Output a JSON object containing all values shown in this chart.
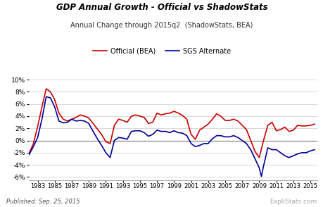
{
  "title": "GDP Annual Growth - Official vs ShadowStats",
  "subtitle": "Annual Change through 2015q2  (ShadowStats, BEA)",
  "ylim": [
    -6.5,
    10.5
  ],
  "xlim": [
    1982.0,
    2015.8
  ],
  "yticks": [
    -6,
    -4,
    -2,
    0,
    2,
    4,
    6,
    8,
    10
  ],
  "xticks": [
    1983,
    1985,
    1987,
    1989,
    1991,
    1993,
    1995,
    1997,
    1999,
    2001,
    2003,
    2005,
    2007,
    2009,
    2011,
    2013,
    2015
  ],
  "official_color": "#cc0000",
  "sgs_color": "#000099",
  "zero_line_color": "#888888",
  "background_color": "#ffffff",
  "grid_color": "#cccccc",
  "published_text": "Published: Sep. 25, 2015",
  "watermark_text": "ExpliStats.com",
  "legend_official": "Official (BEA)",
  "legend_sgs": "SGS Alternate",
  "official_x": [
    1982.0,
    1982.5,
    1983.0,
    1983.5,
    1984.0,
    1984.5,
    1985.0,
    1985.5,
    1986.0,
    1986.5,
    1987.0,
    1987.5,
    1988.0,
    1988.5,
    1989.0,
    1989.5,
    1990.0,
    1990.5,
    1991.0,
    1991.5,
    1992.0,
    1992.5,
    1993.0,
    1993.5,
    1994.0,
    1994.5,
    1995.0,
    1995.5,
    1996.0,
    1996.5,
    1997.0,
    1997.5,
    1998.0,
    1998.5,
    1999.0,
    1999.5,
    2000.0,
    2000.5,
    2001.0,
    2001.5,
    2002.0,
    2002.5,
    2003.0,
    2003.5,
    2004.0,
    2004.5,
    2005.0,
    2005.5,
    2006.0,
    2006.5,
    2007.0,
    2007.5,
    2008.0,
    2008.5,
    2009.0,
    2009.5,
    2010.0,
    2010.5,
    2011.0,
    2011.5,
    2012.0,
    2012.5,
    2013.0,
    2013.5,
    2014.0,
    2014.5,
    2015.0,
    2015.5
  ],
  "official_y": [
    -2.1,
    -0.5,
    2.3,
    5.5,
    8.5,
    8.0,
    6.7,
    4.5,
    3.5,
    3.2,
    3.5,
    3.8,
    4.2,
    4.0,
    3.7,
    2.8,
    1.9,
    1.0,
    -0.2,
    -0.5,
    2.5,
    3.5,
    3.3,
    3.0,
    4.0,
    4.2,
    4.0,
    3.8,
    2.8,
    3.0,
    4.5,
    4.2,
    4.4,
    4.5,
    4.8,
    4.5,
    4.1,
    3.5,
    1.0,
    0.2,
    1.7,
    2.2,
    2.7,
    3.5,
    4.4,
    4.0,
    3.3,
    3.3,
    3.5,
    3.2,
    2.5,
    1.8,
    0.0,
    -1.8,
    -2.8,
    0.0,
    2.5,
    3.0,
    1.6,
    1.8,
    2.2,
    1.5,
    1.7,
    2.5,
    2.4,
    2.4,
    2.5,
    2.7
  ],
  "sgs_x": [
    1982.0,
    1982.5,
    1983.0,
    1983.5,
    1984.0,
    1984.5,
    1985.0,
    1985.5,
    1986.0,
    1986.5,
    1987.0,
    1987.5,
    1988.0,
    1988.5,
    1989.0,
    1989.5,
    1990.0,
    1990.5,
    1991.0,
    1991.5,
    1992.0,
    1992.5,
    1993.0,
    1993.5,
    1994.0,
    1994.5,
    1995.0,
    1995.5,
    1996.0,
    1996.5,
    1997.0,
    1997.5,
    1998.0,
    1998.5,
    1999.0,
    1999.5,
    2000.0,
    2000.5,
    2001.0,
    2001.5,
    2002.0,
    2002.5,
    2003.0,
    2003.5,
    2004.0,
    2004.5,
    2005.0,
    2005.5,
    2006.0,
    2006.5,
    2007.0,
    2007.5,
    2008.0,
    2008.5,
    2009.0,
    2009.25,
    2009.5,
    2010.0,
    2010.5,
    2011.0,
    2011.5,
    2012.0,
    2012.5,
    2013.0,
    2013.5,
    2014.0,
    2014.5,
    2015.0,
    2015.5
  ],
  "sgs_y": [
    -2.3,
    -1.0,
    0.5,
    3.5,
    7.2,
    7.0,
    5.5,
    3.2,
    2.9,
    3.0,
    3.5,
    3.2,
    3.3,
    3.2,
    2.8,
    1.5,
    0.3,
    -0.8,
    -2.0,
    -2.8,
    0.0,
    0.5,
    0.4,
    0.2,
    1.5,
    1.6,
    1.6,
    1.3,
    0.7,
    1.0,
    1.7,
    1.5,
    1.5,
    1.3,
    1.6,
    1.3,
    1.2,
    0.8,
    -0.5,
    -1.0,
    -0.8,
    -0.5,
    -0.5,
    0.3,
    0.8,
    0.8,
    0.6,
    0.6,
    0.8,
    0.5,
    0.0,
    -0.5,
    -1.5,
    -3.0,
    -4.5,
    -5.9,
    -4.2,
    -1.2,
    -1.5,
    -1.5,
    -2.0,
    -2.5,
    -2.8,
    -2.5,
    -2.2,
    -2.0,
    -2.0,
    -1.7,
    -1.5
  ]
}
